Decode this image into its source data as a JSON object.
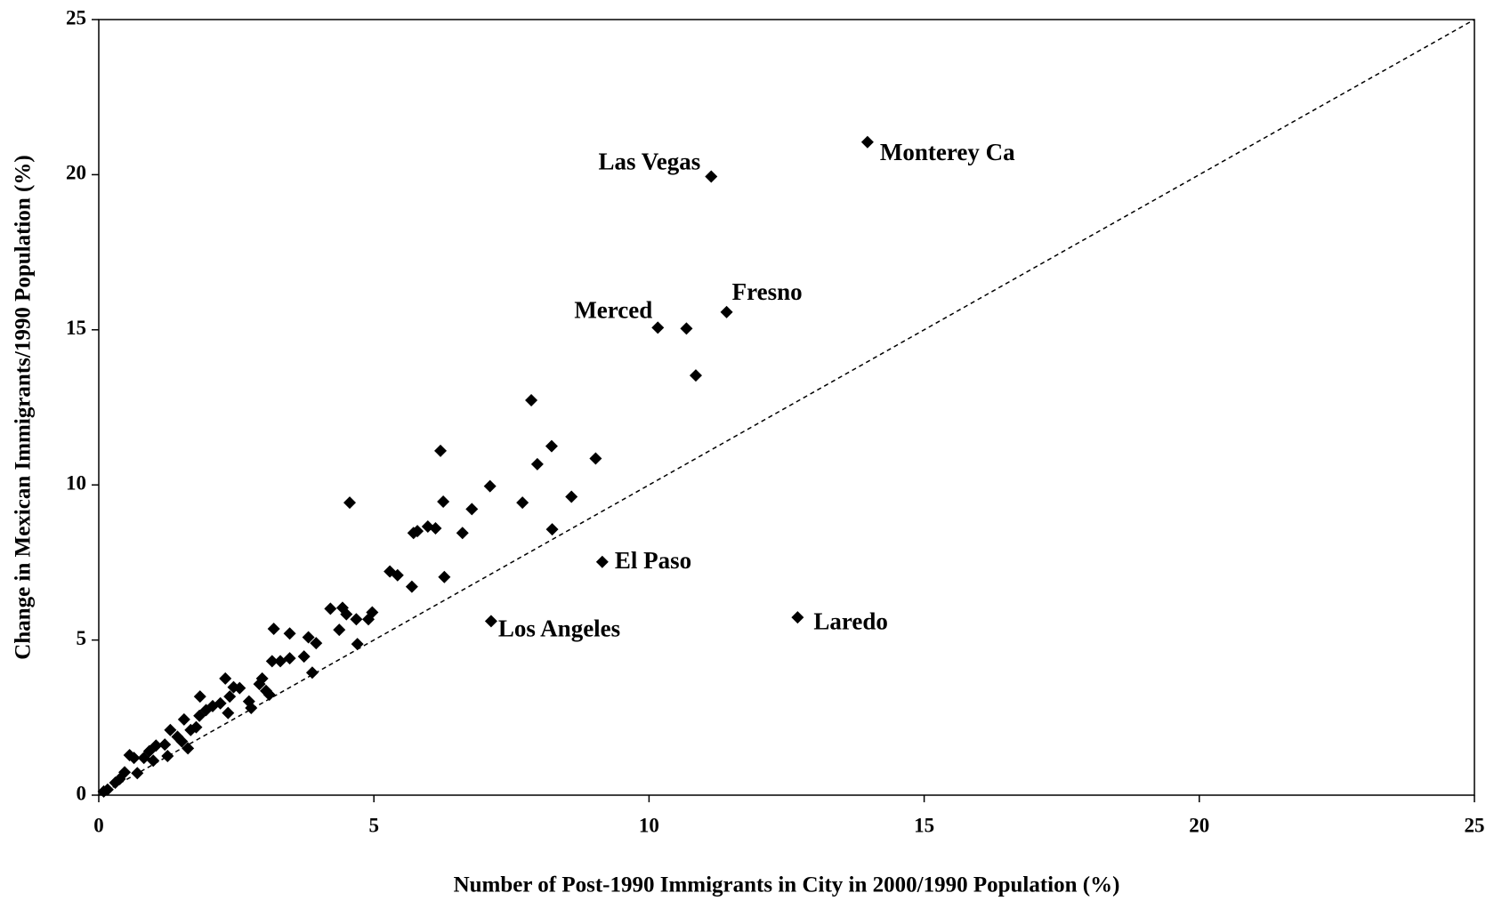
{
  "chart_data": {
    "type": "scatter",
    "x_label": "Number of Post-1990 Immigrants in City in 2000/1990 Population (%)",
    "y_label": "Change in Mexican Immigrants/1990 Population (%)",
    "xlim": [
      0,
      25
    ],
    "ylim": [
      0,
      25
    ],
    "xticks": [
      0,
      5,
      10,
      15,
      20,
      25
    ],
    "yticks": [
      0,
      5,
      10,
      15,
      20,
      25
    ],
    "grid": false,
    "diagonal": true,
    "color": "#000000",
    "labels": [
      "Monterey Ca",
      "Las Vegas",
      "Fresno",
      "Merced",
      null,
      null,
      "El Paso",
      "Los Angeles",
      "Laredo",
      null,
      null,
      null,
      null,
      null,
      null,
      null,
      null,
      null,
      null,
      null,
      null,
      null,
      null,
      null,
      null,
      null,
      null,
      null,
      null,
      null,
      null,
      null,
      null,
      null,
      null,
      null,
      null,
      null,
      null,
      null,
      null,
      null,
      null,
      null,
      null,
      null,
      null,
      null,
      null,
      null,
      null,
      null,
      null,
      null,
      null,
      null,
      null,
      null,
      null,
      null,
      null,
      null,
      null,
      null,
      null,
      null,
      null,
      null,
      null,
      null,
      null,
      null,
      null,
      null,
      null,
      null,
      null,
      null
    ],
    "x": [
      13.97,
      11.13,
      11.41,
      10.16,
      10.68,
      10.85,
      9.15,
      7.13,
      12.7,
      7.86,
      8.23,
      6.21,
      9.03,
      7.97,
      7.11,
      4.56,
      6.26,
      7.7,
      8.59,
      6.78,
      5.72,
      5.79,
      5.98,
      6.12,
      6.61,
      8.24,
      6.28,
      5.29,
      5.43,
      5.69,
      4.21,
      4.43,
      4.5,
      4.68,
      4.37,
      4.97,
      4.9,
      4.7,
      3.18,
      3.47,
      3.81,
      3.95,
      3.15,
      3.3,
      3.47,
      3.73,
      3.88,
      2.97,
      2.92,
      3.04,
      3.1,
      2.73,
      2.77,
      2.3,
      2.45,
      2.56,
      2.38,
      2.21,
      2.35,
      1.84,
      2.07,
      1.95,
      1.83,
      1.55,
      1.67,
      1.3,
      1.43,
      1.62,
      1.2,
      1.04,
      0.92,
      0.82,
      0.64,
      0.56,
      0.7,
      0.47,
      0.3,
      0.16,
      0.09,
      0.99,
      1.25,
      1.77,
      1.51,
      0.38
    ],
    "y": [
      21.05,
      19.94,
      15.57,
      15.07,
      15.04,
      13.53,
      7.52,
      5.61,
      5.73,
      12.73,
      11.25,
      11.1,
      10.85,
      10.67,
      9.96,
      9.43,
      9.46,
      9.43,
      9.62,
      9.22,
      8.45,
      8.51,
      8.66,
      8.6,
      8.45,
      8.57,
      7.03,
      7.21,
      7.09,
      6.72,
      6.01,
      6.04,
      5.83,
      5.67,
      5.33,
      5.89,
      5.67,
      4.87,
      5.36,
      5.21,
      5.09,
      4.9,
      4.32,
      4.32,
      4.41,
      4.47,
      3.95,
      3.76,
      3.58,
      3.36,
      3.24,
      3.02,
      2.81,
      3.76,
      3.48,
      3.45,
      3.18,
      2.96,
      2.65,
      3.18,
      2.87,
      2.74,
      2.56,
      2.44,
      2.1,
      2.1,
      1.88,
      1.51,
      1.63,
      1.6,
      1.42,
      1.2,
      1.2,
      1.29,
      0.71,
      0.74,
      0.4,
      0.18,
      0.12,
      1.11,
      1.26,
      2.19,
      1.73,
      0.52
    ]
  }
}
